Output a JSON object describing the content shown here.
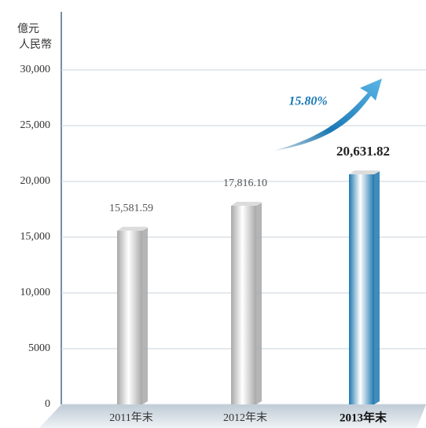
{
  "chart_data": {
    "type": "bar",
    "ylabel": [
      "億元",
      "人民幣"
    ],
    "categories": [
      "2011年末",
      "2012年末",
      "2013年末"
    ],
    "values": [
      15581.59,
      17816.1,
      20631.82
    ],
    "value_labels": [
      "15,581.59",
      "17,816.10",
      "20,631.82"
    ],
    "colors": [
      "#a8a8a8",
      "#a8a8a8",
      "#1f78b0"
    ],
    "highlight_index": 2,
    "annotation": "15.80%",
    "ylim": [
      0,
      35000
    ],
    "yticks": [
      0,
      5000,
      {
        "value": 10000,
        "label": "10,000"
      },
      {
        "value": 15000,
        "label": "15,000"
      },
      {
        "value": 20000,
        "label": "20,000"
      },
      {
        "value": 25000,
        "label": "25,000"
      },
      {
        "value": 30000,
        "label": "30,000"
      }
    ],
    "grid": true
  }
}
